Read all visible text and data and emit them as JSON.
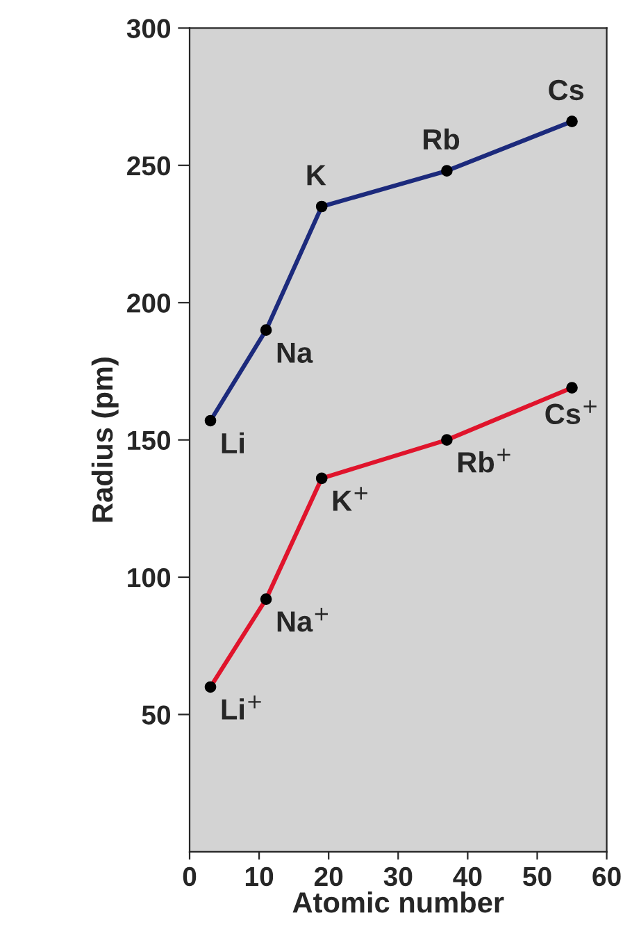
{
  "chart_data": {
    "type": "line",
    "xlabel": "Atomic number",
    "ylabel": "Radius (pm)",
    "xlim": [
      0,
      60
    ],
    "xticks": [
      0,
      10,
      20,
      30,
      40,
      50,
      60
    ],
    "ylim": [
      0,
      300
    ],
    "yticks": [
      50,
      100,
      150,
      200,
      250,
      300
    ],
    "tick_labels": "xy",
    "grid": false,
    "legend": false,
    "marker": "circle",
    "line_style": "solid",
    "series": [
      {
        "color": "#1c2a7c",
        "x": [
          3,
          11,
          19,
          37,
          55
        ],
        "values": [
          157,
          190,
          235,
          248,
          266
        ]
      },
      {
        "color": "#e0142c",
        "x": [
          3,
          11,
          19,
          37,
          55
        ],
        "values": [
          60,
          92,
          136,
          150,
          169
        ]
      }
    ],
    "annotations": [
      {
        "text": "Li",
        "x": 3,
        "y": 157
      },
      {
        "text": "Na",
        "x": 11,
        "y": 190
      },
      {
        "text": "K",
        "x": 19,
        "y": 235
      },
      {
        "text": "Rb",
        "x": 37,
        "y": 248
      },
      {
        "text": "Cs",
        "x": 55,
        "y": 266
      },
      {
        "text": "Li$^{+}$",
        "x": 3,
        "y": 60
      },
      {
        "text": "Na$^{+}$",
        "x": 11,
        "y": 92
      },
      {
        "text": "K$^{+}$",
        "x": 19,
        "y": 136
      },
      {
        "text": "Rb$^{+}$",
        "x": 37,
        "y": 150
      },
      {
        "text": "Cs$^{+}$",
        "x": 55,
        "y": 169
      }
    ]
  }
}
